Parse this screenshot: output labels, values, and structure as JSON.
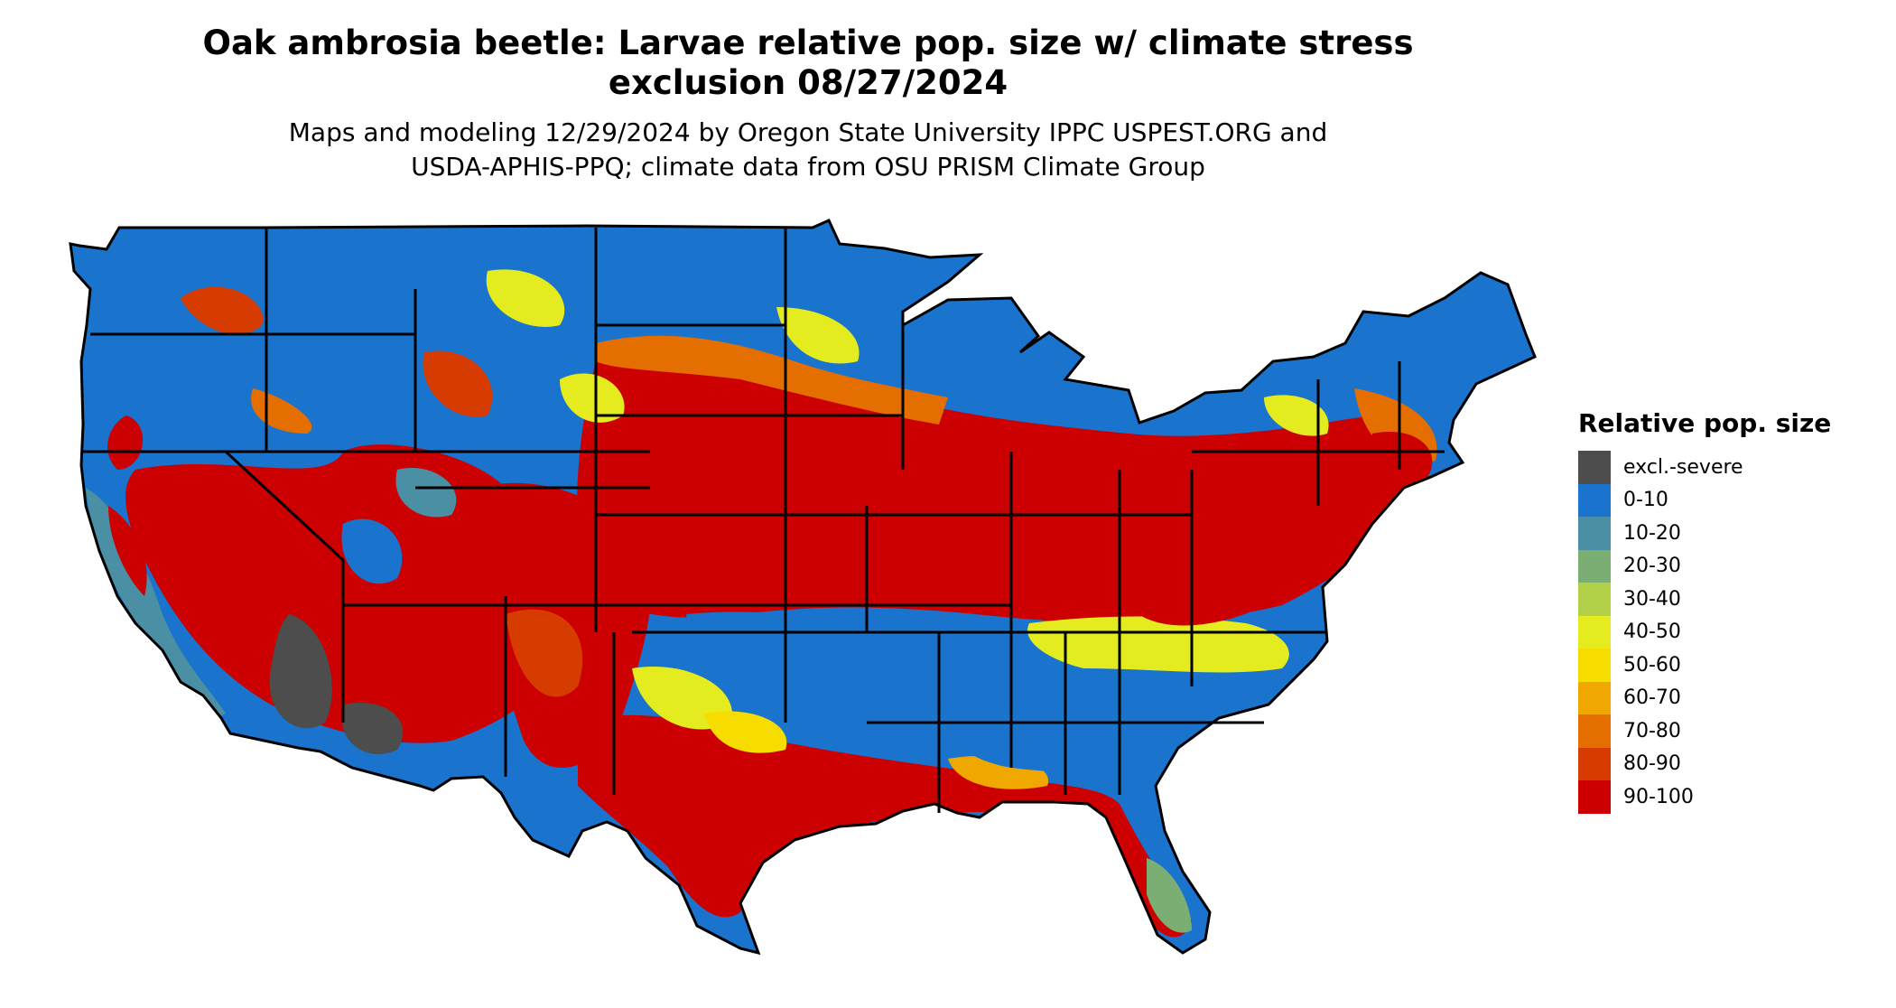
{
  "title": {
    "line1": "Oak ambrosia beetle: Larvae relative pop. size w/ climate stress",
    "line2": "exclusion 08/27/2024"
  },
  "subtitle": {
    "line1": "Maps and modeling 12/29/2024 by Oregon State University IPPC USPEST.ORG and",
    "line2": "USDA-APHIS-PPQ; climate data from OSU PRISM Climate Group"
  },
  "legend": {
    "title": "Relative pop. size",
    "items": [
      {
        "label": "excl.-severe",
        "color": "#4d4d4d"
      },
      {
        "label": "0-10",
        "color": "#1a73cc"
      },
      {
        "label": "10-20",
        "color": "#4a8fa3"
      },
      {
        "label": "20-30",
        "color": "#7aae72"
      },
      {
        "label": "30-40",
        "color": "#b2d048"
      },
      {
        "label": "40-50",
        "color": "#e4ec20"
      },
      {
        "label": "50-60",
        "color": "#f7dc00"
      },
      {
        "label": "60-70",
        "color": "#f0a800"
      },
      {
        "label": "70-80",
        "color": "#e46e00"
      },
      {
        "label": "80-90",
        "color": "#d63c00"
      },
      {
        "label": "90-100",
        "color": "#cc0000"
      }
    ]
  },
  "colors": {
    "background": "#ffffff",
    "state_border": "#000000",
    "high_risk": "#cc0000",
    "low_risk": "#1a73cc"
  }
}
